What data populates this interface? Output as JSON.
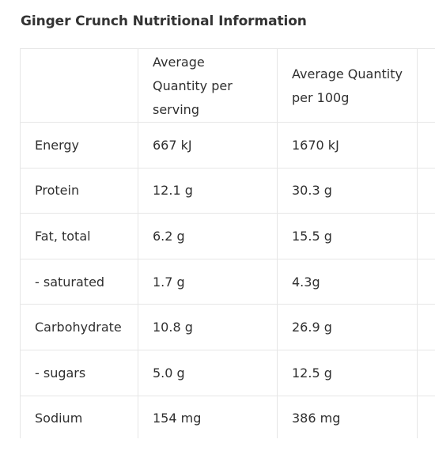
{
  "title": "Ginger Crunch Nutritional Information",
  "table": {
    "headers": [
      "",
      "Average Quantity per serving",
      "Average Quantity per 100g",
      ""
    ],
    "rows": [
      {
        "nutrient": "Energy",
        "per_serving": "667 kJ",
        "per_100g": "1670 kJ"
      },
      {
        "nutrient": "Protein",
        "per_serving": "12.1 g",
        "per_100g": "30.3 g"
      },
      {
        "nutrient": "Fat, total",
        "per_serving": "6.2 g",
        "per_100g": "15.5 g"
      },
      {
        "nutrient": "- saturated",
        "per_serving": "1.7 g",
        "per_100g": "4.3g"
      },
      {
        "nutrient": "Carbohydrate",
        "per_serving": "10.8 g",
        "per_100g": "26.9 g"
      },
      {
        "nutrient": "- sugars",
        "per_serving": "5.0 g",
        "per_100g": "12.5 g"
      },
      {
        "nutrient": "Sodium",
        "per_serving": "154 mg",
        "per_100g": "386 mg"
      }
    ]
  }
}
